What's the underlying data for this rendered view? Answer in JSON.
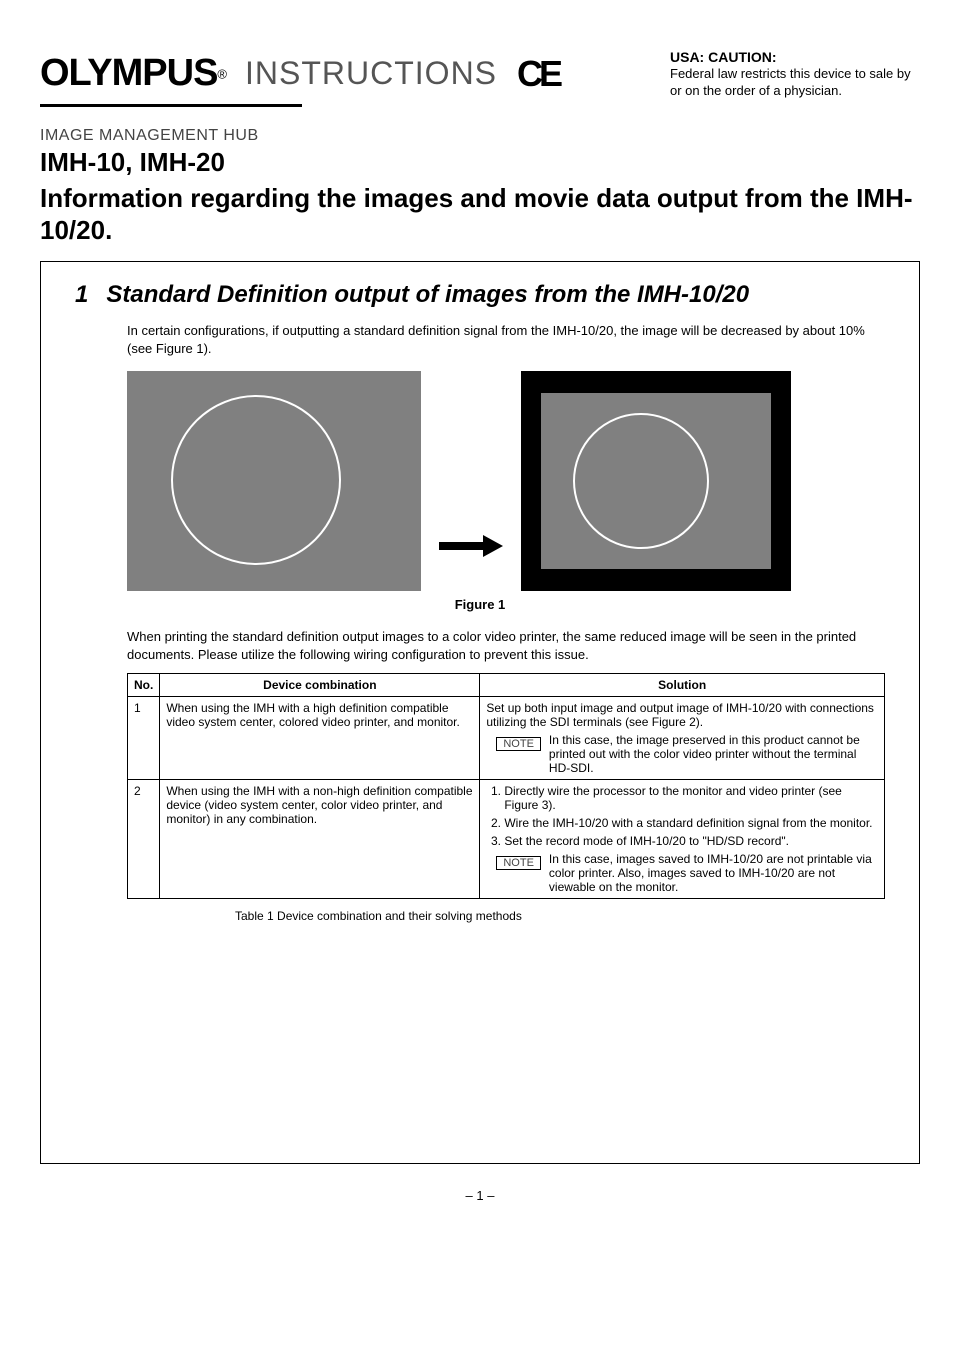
{
  "header": {
    "brand": "OLYMPUS",
    "reg": "®",
    "instructions": "INSTRUCTIONS",
    "ce": "CE",
    "usa_title": "USA:  CAUTION:",
    "usa_body": "Federal law restricts this device to sale by or on the order of a physician."
  },
  "product": {
    "category": "IMAGE MANAGEMENT HUB",
    "models": "IMH-10, IMH-20",
    "info_title": "Information regarding the images and movie data output from the IMH-10/20."
  },
  "section1": {
    "num": "1",
    "title": "Standard Definition output of images from the IMH-10/20",
    "para1": "In certain configurations, if outputting a standard definition signal from the IMH-10/20, the image will be decreased by about 10% (see Figure 1).",
    "figure_caption": "Figure 1",
    "para2": "When printing the standard definition output images to a color video printer, the same reduced image will be seen in the printed documents. Please utilize the following wiring configuration to prevent this issue."
  },
  "figure1": {
    "left_bg": "#808080",
    "right_outer_bg": "#000000",
    "right_inner_bg": "#808080",
    "circle_stroke": "#ffffff"
  },
  "table1": {
    "headers": {
      "no": "No.",
      "combo": "Device combination",
      "solution": "Solution"
    },
    "rows": [
      {
        "no": "1",
        "combo": "When using the IMH with a high definition compatible video system center, colored video printer, and monitor.",
        "sol_lead": "Set up both input image and output image of IMH-10/20 with connections utilizing the SDI terminals (see Figure 2).",
        "note_label": "NOTE",
        "note_text": "In this case, the image preserved in this product cannot be printed out with the color video printer without the terminal HD-SDI."
      },
      {
        "no": "2",
        "combo": "When using the IMH with a non-high definition compatible device (video system center, color video printer, and monitor) in any combination.",
        "sol_items": [
          "Directly wire the processor to the monitor and video printer (see Figure 3).",
          "Wire the IMH-10/20 with a standard definition signal from the monitor.",
          "Set the record mode of IMH-10/20 to \"HD/SD record\"."
        ],
        "note_label": "NOTE",
        "note_text": "In this case, images saved to IMH-10/20 are not printable via color printer. Also, images saved to IMH-10/20 are not viewable on the monitor."
      }
    ],
    "caption": "Table 1    Device combination and their solving methods"
  },
  "footer": {
    "page": "– 1 –"
  }
}
